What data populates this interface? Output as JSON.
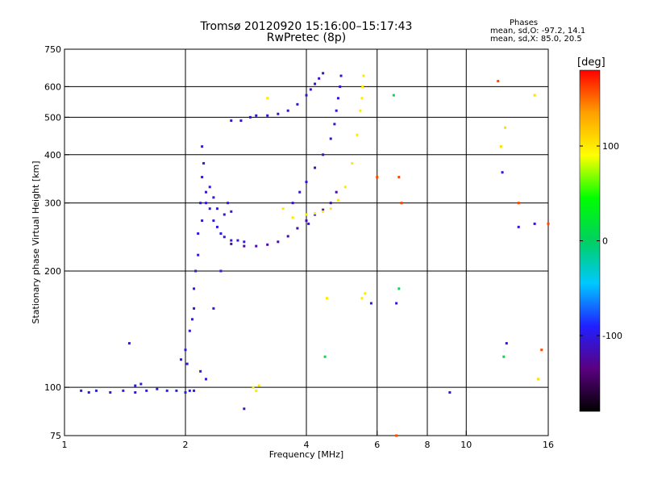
{
  "header": {
    "title_line1": "Tromsø 20120920 15:16:00–15:17:43",
    "title_line2": "RwPretec (8p)",
    "phases_title": "Phases",
    "phases_o": "mean, sd,O: -97.2, 14.1",
    "phases_x": "mean, sd,X: 85.0, 20.5"
  },
  "colorbar": {
    "label": "[deg]",
    "range": [
      -180,
      180
    ],
    "ticks": [
      {
        "value": 100,
        "label": "100"
      },
      {
        "value": 0,
        "label": "0"
      },
      {
        "value": -100,
        "label": "-100"
      }
    ],
    "colors": [
      "#000000",
      "#5a0080",
      "#2020ff",
      "#00c8ff",
      "#00d060",
      "#00ff00",
      "#ffff00",
      "#ffa000",
      "#ff0000"
    ]
  },
  "chart_data": {
    "type": "scatter",
    "xlabel": "Frequency [MHz]",
    "ylabel": "Stationary phase Virtual Height [km]",
    "xscale": "log",
    "yscale": "log",
    "xlim": [
      1,
      16
    ],
    "ylim": [
      75,
      750
    ],
    "grid": true,
    "x_ticks": [
      {
        "value": 1,
        "label": "1"
      },
      {
        "value": 2,
        "label": "2"
      },
      {
        "value": 4,
        "label": "4"
      },
      {
        "value": 6,
        "label": "6"
      },
      {
        "value": 8,
        "label": "8"
      },
      {
        "value": 10,
        "label": "10"
      },
      {
        "value": 16,
        "label": "16"
      }
    ],
    "y_ticks": [
      {
        "value": 75,
        "label": "75"
      },
      {
        "value": 100,
        "label": "100"
      },
      {
        "value": 200,
        "label": "200"
      },
      {
        "value": 300,
        "label": "300"
      },
      {
        "value": 400,
        "label": "400"
      },
      {
        "value": 500,
        "label": "500"
      },
      {
        "value": 600,
        "label": "600"
      },
      {
        "value": 750,
        "label": "750"
      }
    ],
    "grid_x": [
      2,
      4,
      6,
      8,
      10
    ],
    "grid_y": [
      100,
      200,
      300,
      400,
      500,
      600
    ],
    "series": [
      {
        "phase": -95,
        "points": [
          [
            1.1,
            98
          ],
          [
            1.15,
            97
          ],
          [
            1.2,
            98
          ],
          [
            1.3,
            97
          ],
          [
            1.4,
            98
          ],
          [
            1.5,
            97
          ],
          [
            1.6,
            98
          ],
          [
            1.7,
            99
          ],
          [
            1.8,
            98
          ],
          [
            1.9,
            98
          ],
          [
            2.0,
            97
          ],
          [
            2.05,
            98
          ],
          [
            2.1,
            98
          ]
        ]
      },
      {
        "phase": -100,
        "points": [
          [
            1.45,
            130
          ],
          [
            1.5,
            101
          ],
          [
            1.55,
            102
          ],
          [
            1.95,
            118
          ],
          [
            2.0,
            125
          ],
          [
            2.02,
            115
          ],
          [
            2.05,
            140
          ],
          [
            2.1,
            160
          ],
          [
            2.12,
            200
          ],
          [
            2.15,
            250
          ],
          [
            2.18,
            300
          ],
          [
            2.2,
            350
          ],
          [
            2.2,
            420
          ],
          [
            2.22,
            380
          ],
          [
            2.25,
            320
          ],
          [
            2.3,
            290
          ],
          [
            2.35,
            270
          ],
          [
            2.4,
            260
          ],
          [
            2.45,
            250
          ],
          [
            2.5,
            245
          ],
          [
            2.6,
            240
          ],
          [
            2.7,
            240
          ],
          [
            2.8,
            238
          ],
          [
            2.1,
            180
          ],
          [
            2.08,
            150
          ],
          [
            2.15,
            220
          ],
          [
            2.2,
            270
          ],
          [
            2.25,
            300
          ],
          [
            2.3,
            330
          ],
          [
            2.35,
            310
          ],
          [
            2.4,
            290
          ],
          [
            2.5,
            280
          ],
          [
            2.55,
            300
          ],
          [
            2.6,
            285
          ],
          [
            2.18,
            110
          ],
          [
            2.25,
            105
          ],
          [
            2.35,
            160
          ],
          [
            2.45,
            200
          ]
        ]
      },
      {
        "phase": -110,
        "points": [
          [
            2.6,
            490
          ],
          [
            2.75,
            490
          ],
          [
            2.9,
            500
          ],
          [
            3.0,
            505
          ],
          [
            3.2,
            505
          ],
          [
            3.4,
            510
          ],
          [
            3.6,
            520
          ],
          [
            3.8,
            540
          ],
          [
            4.0,
            570
          ],
          [
            4.1,
            590
          ],
          [
            4.2,
            610
          ],
          [
            4.3,
            630
          ],
          [
            4.4,
            650
          ]
        ]
      },
      {
        "phase": -108,
        "points": [
          [
            3.7,
            300
          ],
          [
            3.85,
            320
          ],
          [
            4.0,
            340
          ],
          [
            4.2,
            370
          ],
          [
            4.4,
            400
          ],
          [
            4.6,
            440
          ],
          [
            4.7,
            480
          ],
          [
            4.75,
            520
          ],
          [
            4.8,
            560
          ],
          [
            4.85,
            600
          ],
          [
            4.88,
            640
          ]
        ]
      },
      {
        "phase": -120,
        "points": [
          [
            2.6,
            235
          ],
          [
            2.8,
            232
          ],
          [
            3.0,
            232
          ],
          [
            3.2,
            234
          ],
          [
            3.4,
            238
          ],
          [
            3.6,
            246
          ],
          [
            3.8,
            258
          ],
          [
            4.0,
            270
          ],
          [
            4.2,
            280
          ],
          [
            4.4,
            288
          ],
          [
            4.6,
            300
          ],
          [
            4.75,
            320
          ]
        ]
      },
      {
        "phase": 100,
        "points": [
          [
            2.95,
            100
          ],
          [
            3.0,
            98
          ],
          [
            3.05,
            101
          ],
          [
            3.5,
            290
          ],
          [
            3.7,
            275
          ],
          [
            4.0,
            280
          ],
          [
            4.2,
            282
          ],
          [
            4.4,
            285
          ],
          [
            4.6,
            290
          ],
          [
            4.8,
            305
          ],
          [
            5.0,
            330
          ],
          [
            5.2,
            380
          ],
          [
            5.35,
            450
          ],
          [
            5.45,
            520
          ],
          [
            5.5,
            560
          ],
          [
            5.52,
            600
          ],
          [
            5.55,
            640
          ],
          [
            5.6,
            175
          ],
          [
            5.5,
            170
          ],
          [
            4.5,
            170
          ],
          [
            3.2,
            560
          ]
        ]
      },
      {
        "phase": 10,
        "points": [
          [
            4.45,
            120
          ],
          [
            6.8,
            180
          ],
          [
            6.6,
            570
          ],
          [
            12.4,
            120
          ]
        ]
      },
      {
        "phase": 160,
        "points": [
          [
            6.0,
            350
          ],
          [
            6.8,
            350
          ],
          [
            6.9,
            300
          ],
          [
            12.0,
            620
          ],
          [
            15.4,
            125
          ],
          [
            16,
            265
          ],
          [
            13.5,
            300
          ],
          [
            6.7,
            75
          ]
        ]
      },
      {
        "phase": 105,
        "points": [
          [
            12.2,
            420
          ],
          [
            12.5,
            470
          ],
          [
            14.8,
            570
          ],
          [
            15.1,
            105
          ]
        ]
      },
      {
        "phase": -105,
        "points": [
          [
            6.7,
            165
          ],
          [
            9.1,
            97
          ],
          [
            12.3,
            360
          ],
          [
            13.5,
            260
          ],
          [
            14.8,
            265
          ],
          [
            5.8,
            165
          ],
          [
            4.05,
            265
          ],
          [
            2.8,
            88
          ],
          [
            12.6,
            130
          ]
        ]
      }
    ]
  }
}
